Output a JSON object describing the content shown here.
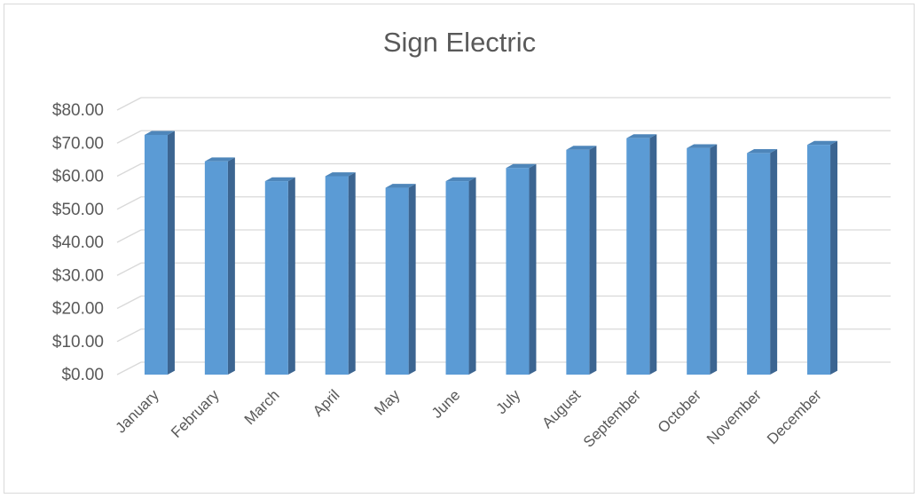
{
  "chart_data": {
    "type": "bar",
    "title": "Sign Electric",
    "xlabel": "",
    "ylabel": "",
    "categories": [
      "January",
      "February",
      "March",
      "April",
      "May",
      "June",
      "July",
      "August",
      "September",
      "October",
      "November",
      "December"
    ],
    "values": [
      72.5,
      64.5,
      58.5,
      60.0,
      56.5,
      58.5,
      62.5,
      68.0,
      71.5,
      68.5,
      67.0,
      69.5
    ],
    "ylim": [
      0,
      80
    ],
    "yticks": [
      "$0.00",
      "$10.00",
      "$20.00",
      "$30.00",
      "$40.00",
      "$50.00",
      "$60.00",
      "$70.00",
      "$80.00"
    ],
    "grid": true,
    "legend": "none",
    "style": "3d-column",
    "colors": {
      "bar_front": "#5b9bd5",
      "bar_side": "#3c6591",
      "bar_top": "#4e86ba",
      "grid": "#d9d9d9",
      "text": "#595959"
    }
  }
}
